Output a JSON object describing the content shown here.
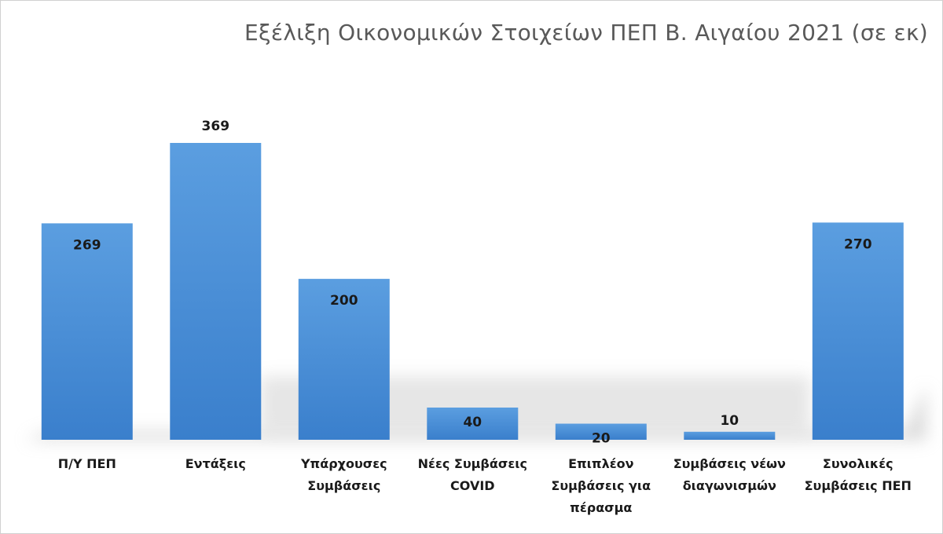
{
  "chart_data": {
    "type": "bar",
    "title": "Εξέλιξη Οικονομικών Στοιχείων ΠΕΠ Β. Αιγαίου 2021 (σε εκ)",
    "xlabel": "",
    "ylabel": "",
    "ylim": [
      0,
      369
    ],
    "grid": false,
    "legend": "none",
    "categories": [
      "Π/Υ ΠΕΠ",
      "Εντάξεις",
      "Υπάρχουσες Συμβάσεις",
      "Νέες Συμβάσεις COVID",
      "Επιπλέον Συμβάσεις για πέρασμα",
      "Συμβάσεις νέων διαγωνισμών",
      "Συνολικές Συμβάσεις ΠΕΠ"
    ],
    "category_lines": [
      [
        "Π/Υ ΠΕΠ"
      ],
      [
        "Εντάξεις"
      ],
      [
        "Υπάρχουσες",
        "Συμβάσεις"
      ],
      [
        "Νέες Συμβάσεις",
        "COVID"
      ],
      [
        "Επιπλέον",
        "Συμβάσεις για",
        "πέρασμα"
      ],
      [
        "Συμβάσεις νέων",
        "διαγωνισμών"
      ],
      [
        "Συνολικές",
        "Συμβάσεις ΠΕΠ"
      ]
    ],
    "values": [
      269,
      369,
      200,
      40,
      20,
      10,
      270
    ],
    "data_labels": [
      "269",
      "369",
      "200",
      "40",
      "20",
      "10",
      "270"
    ],
    "bar_color": "#4a90d9"
  }
}
